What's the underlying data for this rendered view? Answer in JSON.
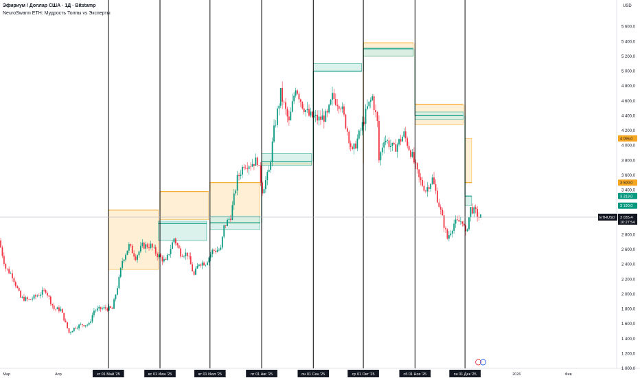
{
  "header": {
    "title": "Эфириум / Доллар США · 1Д · Bitstamp",
    "indicator": "NeuroSwarm ETH: Мудрость Толпы vs Эксперты"
  },
  "currency_label": "USD",
  "colors": {
    "up": "#089981",
    "down": "#f23645",
    "crowd": "#f5a623",
    "crowd_fill": "#fde9c7",
    "expert": "#089981",
    "expert_fill": "#cfeee6",
    "grid_line": "#000000",
    "price_line": "#b2b5be",
    "marker": "#131722"
  },
  "chart_data": {
    "type": "candlestick",
    "symbol": "ETHUSD",
    "ylim": [
      1000,
      5800
    ],
    "y_ticks": [
      "1 000,0",
      "1 200,0",
      "1 400,0",
      "1 600,0",
      "1 800,0",
      "2 000,0",
      "2 200,0",
      "2 400,0",
      "2 600,0",
      "2 800,0",
      "3 000,0",
      "3 200,0",
      "3 400,0",
      "3 600,0",
      "3 800,0",
      "4 000,0",
      "4 200,0",
      "4 400,0",
      "4 600,0",
      "4 800,0",
      "5 000,0",
      "5 200,0",
      "5 400,0",
      "5 600,0"
    ],
    "x_range": [
      "2025-02-25",
      "2026-03-02"
    ],
    "month_ticks": [
      {
        "date": "2025-03-01",
        "label": "Мар",
        "highlight": false
      },
      {
        "date": "2025-04-01",
        "label": "Апр",
        "highlight": false
      },
      {
        "date": "2025-05-01",
        "label": "чт 01 Май '25",
        "highlight": true
      },
      {
        "date": "2025-06-01",
        "label": "вс 01 Июн '25",
        "highlight": true
      },
      {
        "date": "2025-07-01",
        "label": "вт 01 Июл '25",
        "highlight": true
      },
      {
        "date": "2025-08-01",
        "label": "пт 01 Авг '25",
        "highlight": true
      },
      {
        "date": "2025-09-01",
        "label": "пн 01 Сен '25",
        "highlight": true
      },
      {
        "date": "2025-10-01",
        "label": "ср 01 Окт '25",
        "highlight": true
      },
      {
        "date": "2025-11-01",
        "label": "сб 01 Ноя '25",
        "highlight": true
      },
      {
        "date": "2025-12-01",
        "label": "пн 01 Дек '25",
        "highlight": true
      },
      {
        "date": "2026-01-01",
        "label": "2026",
        "highlight": false
      },
      {
        "date": "2026-02-01",
        "label": "Фев",
        "highlight": false
      }
    ],
    "price_path": [
      [
        "2025-02-25",
        2720
      ],
      [
        "2025-03-01",
        2350
      ],
      [
        "2025-03-05",
        2250
      ],
      [
        "2025-03-10",
        1950
      ],
      [
        "2025-03-15",
        1920
      ],
      [
        "2025-03-20",
        1980
      ],
      [
        "2025-03-25",
        2050
      ],
      [
        "2025-03-30",
        1800
      ],
      [
        "2025-04-03",
        1790
      ],
      [
        "2025-04-08",
        1480
      ],
      [
        "2025-04-12",
        1560
      ],
      [
        "2025-04-16",
        1590
      ],
      [
        "2025-04-20",
        1590
      ],
      [
        "2025-04-23",
        1780
      ],
      [
        "2025-04-27",
        1800
      ],
      [
        "2025-04-30",
        1810
      ],
      [
        "2025-05-04",
        1800
      ],
      [
        "2025-05-08",
        2200
      ],
      [
        "2025-05-10",
        2450
      ],
      [
        "2025-05-14",
        2650
      ],
      [
        "2025-05-18",
        2500
      ],
      [
        "2025-05-22",
        2650
      ],
      [
        "2025-05-27",
        2650
      ],
      [
        "2025-05-31",
        2530
      ],
      [
        "2025-06-05",
        2430
      ],
      [
        "2025-06-10",
        2750
      ],
      [
        "2025-06-14",
        2550
      ],
      [
        "2025-06-18",
        2540
      ],
      [
        "2025-06-22",
        2250
      ],
      [
        "2025-06-25",
        2420
      ],
      [
        "2025-06-29",
        2420
      ],
      [
        "2025-07-03",
        2580
      ],
      [
        "2025-07-08",
        2600
      ],
      [
        "2025-07-10",
        2900
      ],
      [
        "2025-07-14",
        3050
      ],
      [
        "2025-07-18",
        3550
      ],
      [
        "2025-07-22",
        3750
      ],
      [
        "2025-07-26",
        3750
      ],
      [
        "2025-07-30",
        3800
      ],
      [
        "2025-08-02",
        3400
      ],
      [
        "2025-08-06",
        3650
      ],
      [
        "2025-08-09",
        4200
      ],
      [
        "2025-08-13",
        4700
      ],
      [
        "2025-08-18",
        4300
      ],
      [
        "2025-08-22",
        4800
      ],
      [
        "2025-08-26",
        4550
      ],
      [
        "2025-08-30",
        4400
      ],
      [
        "2025-09-05",
        4350
      ],
      [
        "2025-09-10",
        4400
      ],
      [
        "2025-09-13",
        4650
      ],
      [
        "2025-09-18",
        4550
      ],
      [
        "2025-09-22",
        4200
      ],
      [
        "2025-09-25",
        3900
      ],
      [
        "2025-09-30",
        4200
      ],
      [
        "2025-10-04",
        4500
      ],
      [
        "2025-10-07",
        4650
      ],
      [
        "2025-10-10",
        4300
      ],
      [
        "2025-10-11",
        3800
      ],
      [
        "2025-10-14",
        4100
      ],
      [
        "2025-10-20",
        3950
      ],
      [
        "2025-10-26",
        4150
      ],
      [
        "2025-10-31",
        3850
      ],
      [
        "2025-11-04",
        3550
      ],
      [
        "2025-11-08",
        3400
      ],
      [
        "2025-11-12",
        3550
      ],
      [
        "2025-11-16",
        3200
      ],
      [
        "2025-11-21",
        2750
      ],
      [
        "2025-11-25",
        2950
      ],
      [
        "2025-11-30",
        2990
      ],
      [
        "2025-12-02",
        2800
      ],
      [
        "2025-12-05",
        3150
      ],
      [
        "2025-12-08",
        3100
      ],
      [
        "2025-12-10",
        3035
      ]
    ],
    "bands": [
      {
        "name": "crowd",
        "start": "2025-05-01",
        "end": "2025-05-31",
        "high": 3130,
        "low": 2330,
        "line": 3130
      },
      {
        "name": "expert",
        "start": "2025-05-31",
        "end": "2025-06-29",
        "high": 2980,
        "low": 2720,
        "line": 2950
      },
      {
        "name": "crowd",
        "start": "2025-06-01",
        "end": "2025-06-30",
        "high": 3380,
        "low": 3000,
        "line": 3380
      },
      {
        "name": "crowd",
        "start": "2025-07-01",
        "end": "2025-07-31",
        "high": 3500,
        "low": 2950,
        "line": 3500
      },
      {
        "name": "expert",
        "start": "2025-07-01",
        "end": "2025-07-31",
        "high": 3050,
        "low": 2870,
        "line": 2960
      },
      {
        "name": "crowd",
        "start": "2025-08-01",
        "end": "2025-08-31",
        "high": 3780,
        "low": 3740,
        "line": 3760
      },
      {
        "name": "expert",
        "start": "2025-08-01",
        "end": "2025-08-31",
        "high": 3890,
        "low": 3730,
        "line": 3780
      },
      {
        "name": "expert",
        "start": "2025-09-01",
        "end": "2025-09-30",
        "high": 5100,
        "low": 5000,
        "line": 5000
      },
      {
        "name": "crowd",
        "start": "2025-10-01",
        "end": "2025-10-31",
        "high": 5380,
        "low": 5200,
        "line": 5380
      },
      {
        "name": "expert",
        "start": "2025-10-01",
        "end": "2025-10-31",
        "high": 5310,
        "low": 5200,
        "line": 5300
      },
      {
        "name": "crowd",
        "start": "2025-11-01",
        "end": "2025-11-30",
        "high": 4550,
        "low": 4280,
        "line": 4550
      },
      {
        "name": "expert",
        "start": "2025-11-01",
        "end": "2025-11-30",
        "high": 4450,
        "low": 4350,
        "line": 4400
      },
      {
        "name": "crowd",
        "start": "2025-12-01",
        "end": "2025-12-05",
        "high": 4095,
        "low": 3500,
        "line": 3500
      },
      {
        "name": "expert",
        "start": "2025-12-01",
        "end": "2025-12-05",
        "high": 3319,
        "low": 3190,
        "line": 3319
      }
    ],
    "price_labels": [
      {
        "label": "4 095,0",
        "value": 4095,
        "kind": "crowd"
      },
      {
        "label": "3 500,0",
        "value": 3500,
        "kind": "crowd"
      },
      {
        "label": "3 319,0",
        "value": 3319,
        "kind": "expert"
      },
      {
        "label": "3 190,0",
        "value": 3190,
        "kind": "expert"
      }
    ],
    "last_price": {
      "symbol": "ETHUSD",
      "value_label": "3 035,4",
      "value": 3035.4,
      "countdown": "10:27:54"
    }
  }
}
